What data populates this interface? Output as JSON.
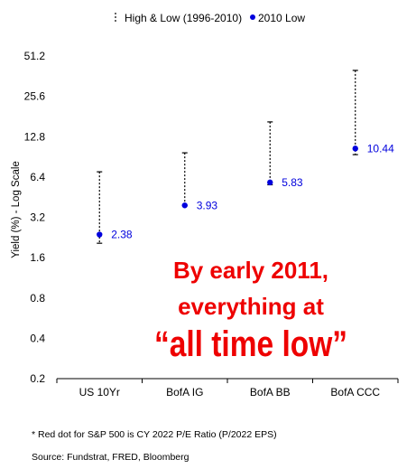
{
  "chart_data": {
    "type": "range-dot",
    "title": "",
    "xlabel": "",
    "ylabel": "Yield (%) - Log Scale",
    "y_scale": "log2",
    "ylim": [
      0.2,
      51.2
    ],
    "y_ticks": [
      0.2,
      0.4,
      0.8,
      1.6,
      3.2,
      6.4,
      12.8,
      25.6,
      51.2
    ],
    "y_tick_labels": [
      "0.2",
      "0.4",
      "0.8",
      "1.6",
      "3.2",
      "6.4",
      "12.8",
      "25.6",
      "51.2"
    ],
    "categories": [
      "US 10Yr",
      "BofA IG",
      "BofA BB",
      "BofA CCC"
    ],
    "series": [
      {
        "name": "High & Low (1996-2010)",
        "style": "dashed-range",
        "color": "#000000",
        "high": [
          7.0,
          9.7,
          16.5,
          40.0
        ],
        "low": [
          2.05,
          3.93,
          5.6,
          9.4
        ]
      },
      {
        "name": "2010 Low",
        "style": "dot",
        "color": "#0000dd",
        "values": [
          2.38,
          3.93,
          5.83,
          10.44
        ],
        "labels": [
          "2.38",
          "3.93",
          "5.83",
          "10.44"
        ]
      }
    ],
    "grid": false,
    "legend_position": "top-center",
    "annotation": {
      "lines": [
        "By early 2011,",
        "everything at",
        "“all time low”"
      ],
      "color": "#ee0000"
    }
  },
  "footnotes": {
    "note": "* Red dot for S&P 500 is CY 2022 P/E Ratio (P/2022 EPS)",
    "source": "Source: Fundstrat, FRED, Bloomberg"
  }
}
